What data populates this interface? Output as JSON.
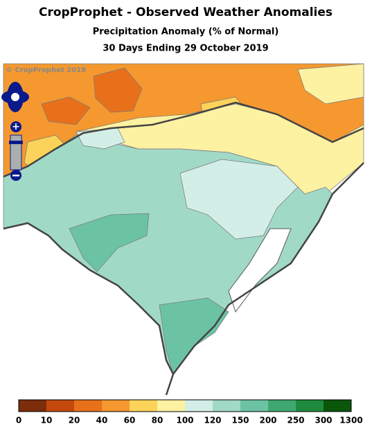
{
  "header": {
    "title": "CropProphet - Observed Weather Anomalies",
    "subtitle": "Precipitation Anomaly (% of Normal)",
    "period": "30 Days Ending 29 October 2019"
  },
  "copyright": "© CropProphet 2019",
  "legend": {
    "bins": [
      0,
      10,
      20,
      40,
      60,
      80,
      100,
      120,
      150,
      200,
      250,
      300,
      1300
    ],
    "colors": [
      "#7d2d0c",
      "#c4480d",
      "#e8701b",
      "#f4982f",
      "#fbd35a",
      "#fdf1a2",
      "#d3eee7",
      "#a1d9c7",
      "#6cc3a3",
      "#3fa872",
      "#1f8a3d",
      "#0a560a"
    ]
  }
}
